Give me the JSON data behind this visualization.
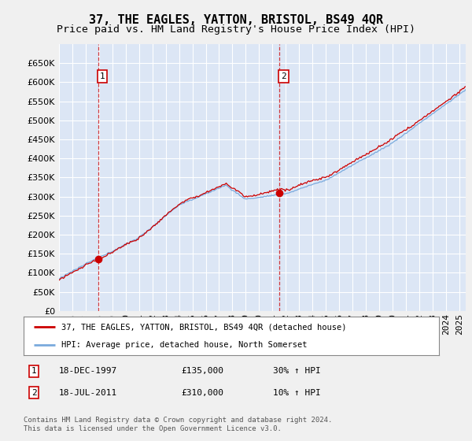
{
  "title": "37, THE EAGLES, YATTON, BRISTOL, BS49 4QR",
  "subtitle": "Price paid vs. HM Land Registry's House Price Index (HPI)",
  "legend_line1": "37, THE EAGLES, YATTON, BRISTOL, BS49 4QR (detached house)",
  "legend_line2": "HPI: Average price, detached house, North Somerset",
  "footnote": "Contains HM Land Registry data © Crown copyright and database right 2024.\nThis data is licensed under the Open Government Licence v3.0.",
  "sale1_date": "18-DEC-1997",
  "sale1_price": "£135,000",
  "sale1_hpi": "30% ↑ HPI",
  "sale2_date": "18-JUL-2011",
  "sale2_price": "£310,000",
  "sale2_hpi": "10% ↑ HPI",
  "sale1_year": 1997.96,
  "sale1_value": 135000,
  "sale2_year": 2011.54,
  "sale2_value": 310000,
  "ylim_min": 0,
  "ylim_max": 700000,
  "yticks": [
    0,
    50000,
    100000,
    150000,
    200000,
    250000,
    300000,
    350000,
    400000,
    450000,
    500000,
    550000,
    600000,
    650000
  ],
  "xlim_min": 1995,
  "xlim_max": 2025.5,
  "plot_bg_color": "#dce6f5",
  "fig_bg_color": "#f0f0f0",
  "red_line_color": "#cc0000",
  "blue_line_color": "#7aaadd",
  "grid_color": "#ffffff",
  "title_fontsize": 11,
  "subtitle_fontsize": 9.5,
  "tick_label_fontsize": 8
}
